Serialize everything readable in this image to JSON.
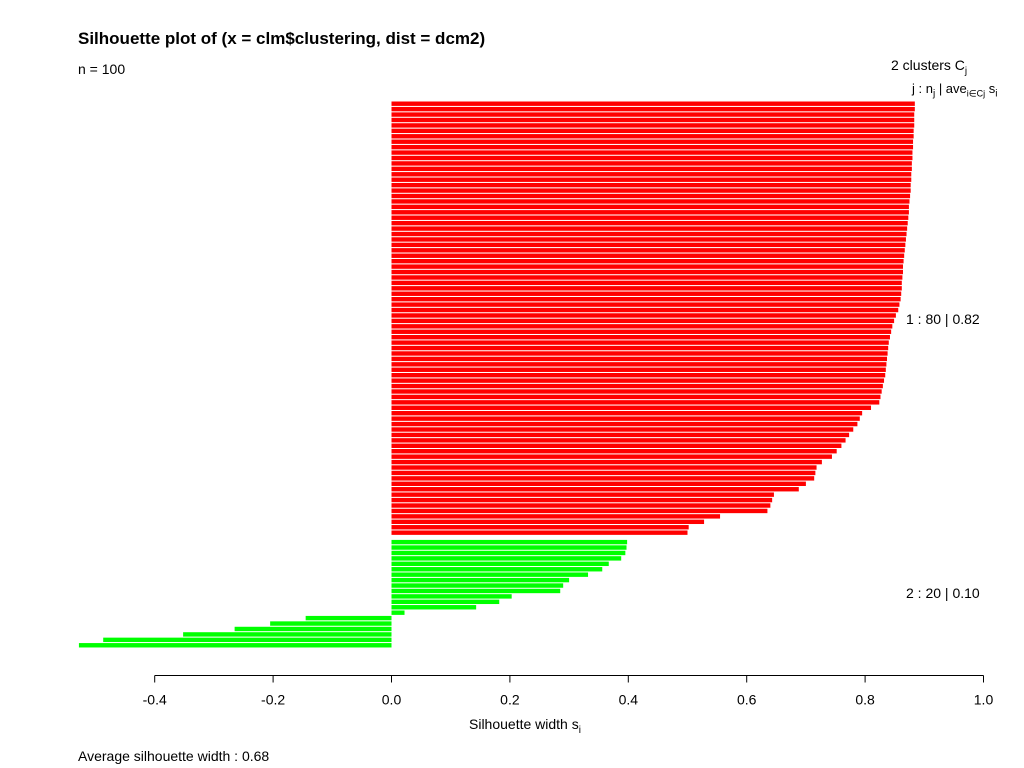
{
  "chart_data": {
    "type": "bar",
    "orientation": "horizontal",
    "title": "Silhouette plot of (x = clm$clustering, dist = dcm2)",
    "subtitle": "n = 100",
    "xlabel": "Silhouette width s",
    "xlabel_sub": "i",
    "xlim": [
      -0.53,
      1.0
    ],
    "ticks": [
      -0.4,
      -0.2,
      0.0,
      0.2,
      0.4,
      0.6,
      0.8,
      1.0
    ],
    "tick_labels": [
      "-0.4",
      "-0.2",
      "0.0",
      "0.2",
      "0.4",
      "0.6",
      "0.8",
      "1.0"
    ],
    "legend_header": "2  clusters  C",
    "legend_header_sub": "j",
    "legend_colhead": "j :  n",
    "legend_colhead_sub": "j",
    "legend_colhead_mid": " | ave",
    "legend_colhead_sub2": "i∈Cj",
    "legend_colhead_end": "  s",
    "legend_colhead_sub3": "i",
    "average_text": "Average silhouette width :  0.68",
    "clusters": [
      {
        "id": 1,
        "label": "1 :   80  |  0.82",
        "size": 80,
        "avg": 0.82,
        "color": "#ff0000",
        "values": [
          0.884,
          0.884,
          0.883,
          0.883,
          0.883,
          0.882,
          0.882,
          0.881,
          0.881,
          0.88,
          0.88,
          0.879,
          0.879,
          0.878,
          0.878,
          0.877,
          0.877,
          0.876,
          0.875,
          0.874,
          0.874,
          0.873,
          0.872,
          0.871,
          0.87,
          0.869,
          0.868,
          0.867,
          0.866,
          0.865,
          0.864,
          0.864,
          0.863,
          0.862,
          0.862,
          0.861,
          0.86,
          0.858,
          0.856,
          0.852,
          0.849,
          0.846,
          0.844,
          0.842,
          0.84,
          0.839,
          0.838,
          0.837,
          0.836,
          0.835,
          0.834,
          0.832,
          0.83,
          0.828,
          0.826,
          0.824,
          0.81,
          0.795,
          0.791,
          0.787,
          0.78,
          0.773,
          0.767,
          0.76,
          0.752,
          0.744,
          0.727,
          0.718,
          0.716,
          0.714,
          0.7,
          0.688,
          0.646,
          0.643,
          0.64,
          0.635,
          0.555,
          0.528,
          0.502,
          0.5
        ]
      },
      {
        "id": 2,
        "label": "2 :   20  |  0.10",
        "size": 20,
        "avg": 0.1,
        "color": "#00ff00",
        "values": [
          0.398,
          0.397,
          0.395,
          0.388,
          0.367,
          0.356,
          0.332,
          0.3,
          0.29,
          0.285,
          0.203,
          0.182,
          0.143,
          0.022,
          -0.145,
          -0.205,
          -0.265,
          -0.352,
          -0.487,
          -0.528
        ]
      }
    ]
  }
}
